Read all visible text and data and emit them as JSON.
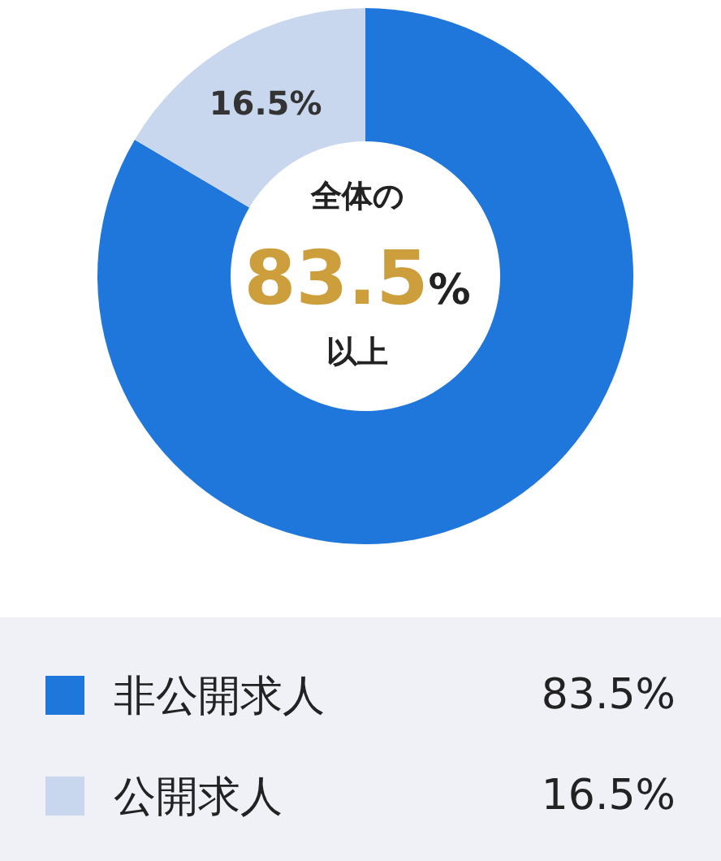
{
  "chart_data": {
    "type": "donut",
    "categories": [
      "非公開求人",
      "公開求人"
    ],
    "values": [
      83.5,
      16.5
    ],
    "colors": [
      "#1f77dc",
      "#c8d7ee"
    ],
    "value_labels": [
      "83.5%",
      "16.5%"
    ],
    "annotations": [
      "全体の",
      "以上"
    ],
    "legend": "bottom"
  }
}
